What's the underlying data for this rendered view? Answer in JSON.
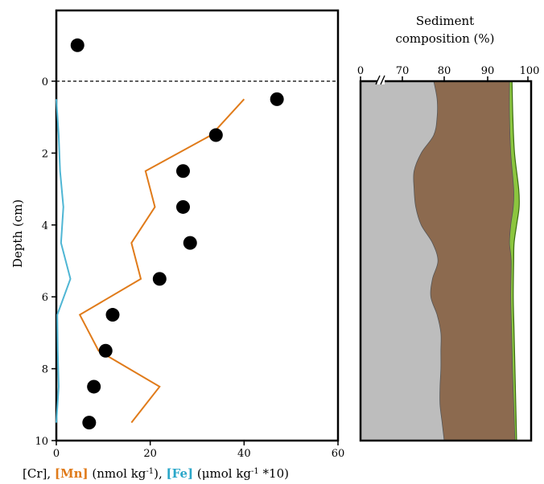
{
  "chart_data": [
    {
      "type": "scatter+line",
      "ylabel": "Depth (cm)",
      "xlabel_parts": [
        {
          "text": "[Cr], ",
          "color": "#000000",
          "bold": false
        },
        {
          "text": "[Mn]",
          "color": "#e07b1a",
          "bold": true
        },
        {
          "text": " (nmol kg",
          "color": "#000000",
          "bold": false
        },
        {
          "text": "-1",
          "color": "#000000",
          "bold": false,
          "sup": true
        },
        {
          "text": "), ",
          "color": "#000000",
          "bold": false
        },
        {
          "text": "[Fe]",
          "color": "#2aa7c9",
          "bold": true
        },
        {
          "text": " (μmol kg",
          "color": "#000000",
          "bold": false
        },
        {
          "text": "-1",
          "color": "#000000",
          "bold": false,
          "sup": true
        },
        {
          "text": " *10)",
          "color": "#000000",
          "bold": false
        }
      ],
      "xlim": [
        0,
        60
      ],
      "ylim": [
        10,
        -2
      ],
      "x_ticks": [
        0,
        20,
        40,
        60
      ],
      "y_ticks": [
        0,
        2,
        4,
        6,
        8,
        10
      ],
      "reference_line": {
        "y": 0,
        "style": "dashed"
      },
      "series": [
        {
          "kind": "scatter",
          "color": "#000000",
          "points": [
            [
              4.5,
              -1.0
            ],
            [
              47.0,
              0.5
            ],
            [
              34.0,
              1.5
            ],
            [
              27.0,
              2.5
            ],
            [
              27.0,
              3.5
            ],
            [
              28.5,
              4.5
            ],
            [
              22.0,
              5.5
            ],
            [
              12.0,
              6.5
            ],
            [
              10.5,
              7.5
            ],
            [
              8.0,
              8.5
            ],
            [
              7.0,
              9.5
            ]
          ]
        },
        {
          "kind": "line",
          "color": "#e07b1a",
          "points": [
            [
              40.0,
              0.5
            ],
            [
              33.0,
              1.5
            ],
            [
              19.0,
              2.5
            ],
            [
              21.0,
              3.5
            ],
            [
              16.0,
              4.5
            ],
            [
              18.0,
              5.5
            ],
            [
              5.0,
              6.5
            ],
            [
              9.0,
              7.5
            ],
            [
              22.0,
              8.5
            ],
            [
              16.0,
              9.5
            ]
          ]
        },
        {
          "kind": "line",
          "color": "#4fb6d4",
          "points": [
            [
              0.0,
              0.5
            ],
            [
              0.5,
              1.5
            ],
            [
              0.8,
              2.5
            ],
            [
              1.5,
              3.5
            ],
            [
              1.0,
              4.5
            ],
            [
              3.0,
              5.5
            ],
            [
              0.2,
              6.5
            ],
            [
              0.3,
              7.5
            ],
            [
              0.5,
              8.5
            ],
            [
              0.0,
              9.5
            ]
          ]
        }
      ]
    },
    {
      "type": "area",
      "title": "Sediment\ncomposition (%)",
      "x_ticks": [
        "0",
        "70",
        "80",
        "90",
        "100"
      ],
      "axis_break": true,
      "ylim": [
        10,
        0
      ],
      "layers": [
        {
          "color": "#bdbdbd",
          "depth": [
            0.0,
            0.5,
            1.0,
            1.5,
            2.0,
            2.5,
            3.0,
            3.5,
            4.0,
            4.5,
            5.0,
            5.5,
            6.0,
            6.5,
            7.0,
            7.5,
            8.0,
            8.5,
            9.0,
            9.5,
            10.0
          ],
          "boundary": [
            77.5,
            78.3,
            78.3,
            77.5,
            74.5,
            72.8,
            72.8,
            73.2,
            74.5,
            77.2,
            78.5,
            77.2,
            76.8,
            78.3,
            79.2,
            79.2,
            79.2,
            79.0,
            79.0,
            79.5,
            80.0
          ]
        },
        {
          "color": "#8c6a4f",
          "depth": [
            0.0,
            1.0,
            2.0,
            3.0,
            3.5,
            4.0,
            4.5,
            5.0,
            6.0,
            7.0,
            8.0,
            9.0,
            10.0
          ],
          "boundary": [
            95.6,
            95.6,
            95.9,
            96.6,
            96.5,
            95.9,
            95.6,
            96.0,
            95.9,
            96.1,
            96.3,
            96.6,
            96.9
          ]
        },
        {
          "color": "#8cc63f",
          "depth": [
            0.0,
            1.0,
            2.0,
            3.0,
            3.5,
            4.0,
            4.5,
            5.0,
            6.0,
            7.0,
            8.0,
            9.0,
            10.0
          ],
          "boundary": [
            96.2,
            96.4,
            96.8,
            97.8,
            97.9,
            97.3,
            96.7,
            96.6,
            96.5,
            96.7,
            96.9,
            97.1,
            97.3
          ]
        },
        {
          "color": "#ffffff",
          "depth": [
            0,
            10
          ],
          "boundary": [
            100,
            100
          ]
        }
      ]
    }
  ]
}
